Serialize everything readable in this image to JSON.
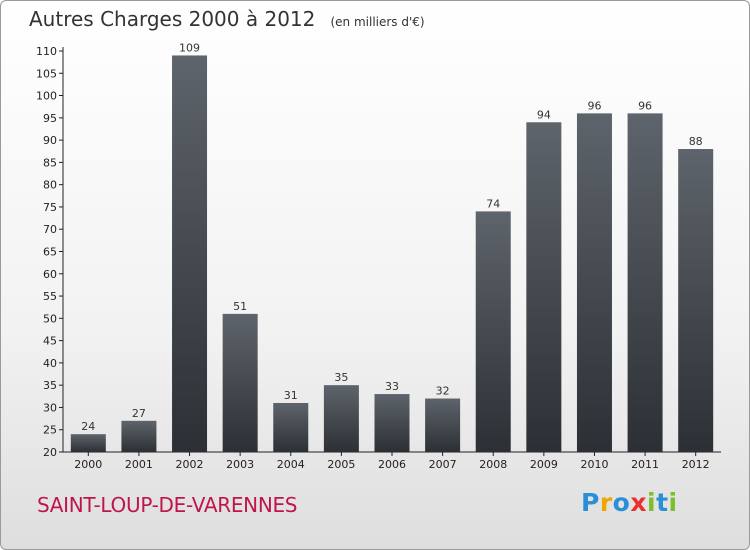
{
  "chart_data": {
    "type": "bar",
    "title": "Autres Charges 2000 à 2012",
    "subtitle": "(en milliers d'€)",
    "categories": [
      "2000",
      "2001",
      "2002",
      "2003",
      "2004",
      "2005",
      "2006",
      "2007",
      "2008",
      "2009",
      "2010",
      "2011",
      "2012"
    ],
    "values": [
      24,
      27,
      109,
      51,
      31,
      35,
      33,
      32,
      74,
      94,
      96,
      96,
      88
    ],
    "ylim": [
      20,
      110
    ],
    "yticks": [
      20,
      25,
      30,
      35,
      40,
      45,
      50,
      55,
      60,
      65,
      70,
      75,
      80,
      85,
      90,
      95,
      100,
      105,
      110
    ],
    "grid": false,
    "bar_color_top": "#5e646b",
    "bar_color_bottom": "#2c3035"
  },
  "place": "SAINT-LOUP-DE-VARENNES",
  "logo": {
    "text": "Proxiti",
    "letters": [
      "P",
      "r",
      "o",
      "x",
      "i",
      "t",
      "i"
    ],
    "colors": [
      "#2a8fd6",
      "#f0a500",
      "#2a8fd6",
      "#e8322b",
      "#7bbf2a",
      "#2a8fd6",
      "#7bbf2a"
    ]
  }
}
